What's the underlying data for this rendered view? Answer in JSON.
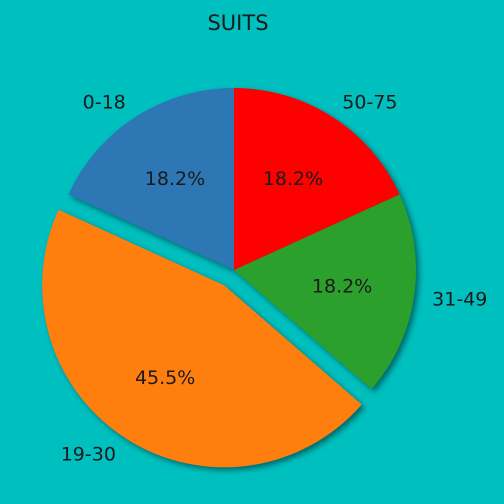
{
  "chart_data": {
    "type": "pie",
    "title": "SUITS",
    "categories": [
      "0-18",
      "19-30",
      "31-49",
      "50-75"
    ],
    "values": [
      18.2,
      45.5,
      18.2,
      18.2
    ],
    "pct_labels": [
      "18.2%",
      "45.5%",
      "18.2%",
      "18.2%"
    ],
    "colors": [
      "#2c77b4",
      "#ff7f0e",
      "#2ca02c",
      "#ff0000"
    ],
    "exploded": [
      "19-30"
    ],
    "start_angle_deg": 90,
    "direction": "counterclockwise",
    "shadow": true,
    "background": "#00bfbf"
  }
}
